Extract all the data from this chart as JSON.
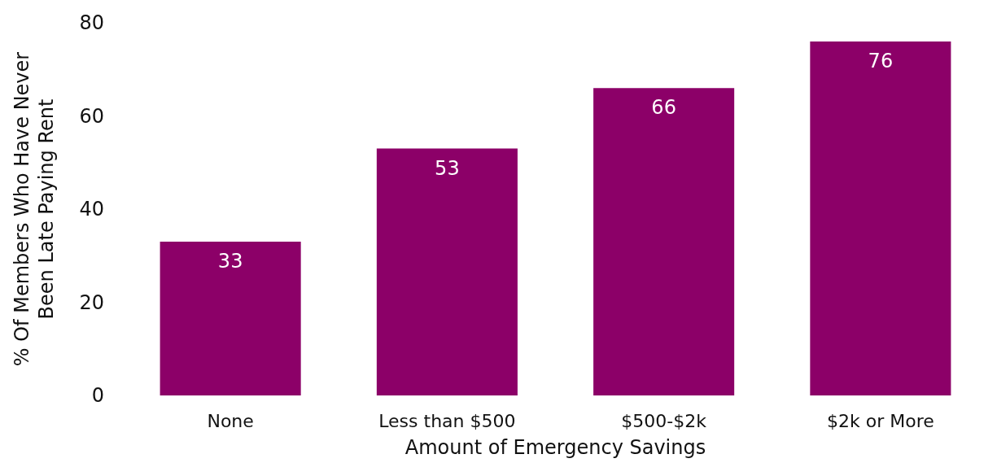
{
  "chart_data": {
    "type": "bar",
    "xlabel": "Amount of Emergency Savings",
    "ylabel": "% Of Members Who Have Never\nBeen Late Paying Rent",
    "categories": [
      "None",
      "Less than $500",
      "$500-$2k",
      "$2k or More"
    ],
    "values": [
      33,
      53,
      66,
      76
    ],
    "color": "#8c0068",
    "ylim": [
      0,
      80
    ],
    "yticks": [
      0,
      20,
      40,
      60,
      80
    ],
    "grid": false,
    "data_labels": true
  }
}
